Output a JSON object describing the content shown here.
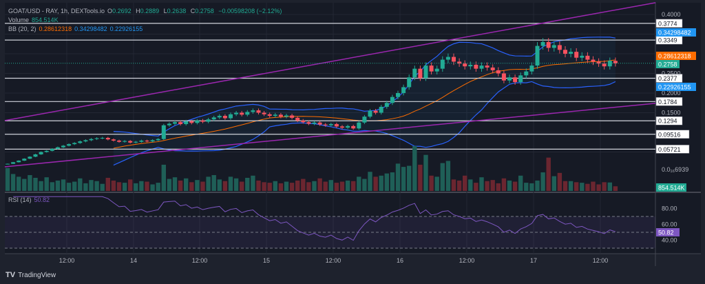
{
  "header": {
    "symbol": "GOAT/USD - RAY, 1h, DEXTools.io",
    "open_label": "O",
    "open": "0.2692",
    "high_label": "H",
    "high": "0.2889",
    "low_label": "L",
    "low": "0.2638",
    "close_label": "C",
    "close": "0.2758",
    "change": "−0.00598208 (−2.12%)",
    "volume_label": "Volume",
    "volume": "854.514K",
    "bb_label": "BB (20, 2)",
    "bb_basis": "0.28612318",
    "bb_upper": "0.34298482",
    "bb_lower": "0.22926155",
    "rsi_label": "RSI (14)",
    "rsi_value": "50.82"
  },
  "price_axis": {
    "ticks": [
      "0.4000",
      "0.2500",
      "0.2000",
      "0.1500"
    ],
    "tick_values": [
      0.4,
      0.25,
      0.2,
      0.15
    ],
    "volume_tick": "0.0₁₆6939"
  },
  "levels": [
    {
      "value": 0.3774,
      "label": "0.3774"
    },
    {
      "value": 0.3349,
      "label": "0.3349"
    },
    {
      "value": 0.2377,
      "label": "0.2377"
    },
    {
      "value": 0.1784,
      "label": "0.1784"
    },
    {
      "value": 0.1294,
      "label": "0.1294"
    },
    {
      "value": 0.09516,
      "label": "0.09516"
    },
    {
      "value": 0.05721,
      "label": "0.05721"
    }
  ],
  "badges": {
    "bb_upper": "0.34298482",
    "bb_basis": "0.28612318",
    "last_price": "0.2758",
    "bb_lower": "0.22926155",
    "volume": "854.514K",
    "rsi": "50.82"
  },
  "rsi_axis": {
    "ticks": [
      "80.00",
      "60.00",
      "40.00"
    ],
    "tick_values": [
      80,
      60,
      40
    ],
    "bands": [
      70,
      50,
      30
    ]
  },
  "time_axis": [
    "12:00",
    "14",
    "12:00",
    "15",
    "12:00",
    "16",
    "12:00",
    "17",
    "12:00"
  ],
  "footer": {
    "brand": "TradingView"
  },
  "colors": {
    "up": "#22ab94",
    "down": "#f7525f",
    "bb_basis": "#ff6d00",
    "bb_band": "#2962ff",
    "trendline": "#9c27b0",
    "rsi": "#7e57c2",
    "background": "#161a25"
  },
  "chart_data": {
    "type": "candlestick",
    "interval": "1h",
    "closes": [
      0.02,
      0.024,
      0.028,
      0.033,
      0.038,
      0.044,
      0.05,
      0.053,
      0.058,
      0.062,
      0.066,
      0.07,
      0.073,
      0.077,
      0.08,
      0.083,
      0.085,
      0.086,
      0.082,
      0.079,
      0.076,
      0.078,
      0.074,
      0.076,
      0.079,
      0.077,
      0.08,
      0.083,
      0.118,
      0.122,
      0.126,
      0.121,
      0.128,
      0.124,
      0.13,
      0.127,
      0.133,
      0.138,
      0.142,
      0.136,
      0.146,
      0.15,
      0.145,
      0.152,
      0.156,
      0.15,
      0.146,
      0.142,
      0.145,
      0.14,
      0.143,
      0.137,
      0.13,
      0.126,
      0.122,
      0.125,
      0.12,
      0.118,
      0.121,
      0.115,
      0.112,
      0.116,
      0.11,
      0.125,
      0.14,
      0.155,
      0.15,
      0.165,
      0.175,
      0.19,
      0.2,
      0.215,
      0.24,
      0.262,
      0.238,
      0.27,
      0.255,
      0.262,
      0.285,
      0.292,
      0.28,
      0.275,
      0.268,
      0.272,
      0.262,
      0.27,
      0.265,
      0.258,
      0.25,
      0.232,
      0.24,
      0.228,
      0.245,
      0.255,
      0.27,
      0.32,
      0.33,
      0.315,
      0.322,
      0.31,
      0.3,
      0.305,
      0.29,
      0.295,
      0.285,
      0.28,
      0.275,
      0.268,
      0.282,
      0.2758
    ],
    "volumes_k": [
      4200,
      3100,
      2600,
      2200,
      2900,
      2400,
      1800,
      2500,
      1600,
      1900,
      2100,
      1500,
      1700,
      2300,
      1400,
      2000,
      1800,
      1300,
      2400,
      1900,
      1600,
      1500,
      2100,
      1400,
      1800,
      1700,
      1200,
      1500,
      4800,
      2200,
      2500,
      1900,
      2300,
      1600,
      2000,
      1700,
      2600,
      2900,
      2100,
      1800,
      2600,
      2300,
      1700,
      2400,
      2800,
      1900,
      1600,
      1500,
      1800,
      1400,
      1700,
      1500,
      1900,
      2200,
      1600,
      1800,
      2300,
      1700,
      2000,
      1500,
      1700,
      1900,
      1800,
      2600,
      2200,
      3500,
      2600,
      2800,
      3200,
      3400,
      5000,
      4400,
      4600,
      8200,
      4800,
      6600,
      2800,
      2600,
      5100,
      5500,
      2100,
      1900,
      2800,
      2100,
      1500,
      2500,
      1800,
      2000,
      1400,
      2300,
      1900,
      1700,
      2800,
      1500,
      1400,
      1900,
      3400,
      6100,
      2700,
      3300,
      1800,
      1800,
      1600,
      1500,
      1300,
      1700,
      1200,
      1600,
      1550,
      854.514
    ],
    "trendlines": [
      {
        "from": [
          -0.5,
          0.13
        ],
        "to": [
          116.2,
          0.43
        ]
      },
      {
        "from": [
          -0.5,
          0.0123
        ],
        "to": [
          116.2,
          0.174
        ]
      }
    ],
    "bb": {
      "length": 20,
      "mult": 2
    },
    "rsi": {
      "length": 14
    },
    "price_range": [
      0.0,
      0.435
    ]
  }
}
